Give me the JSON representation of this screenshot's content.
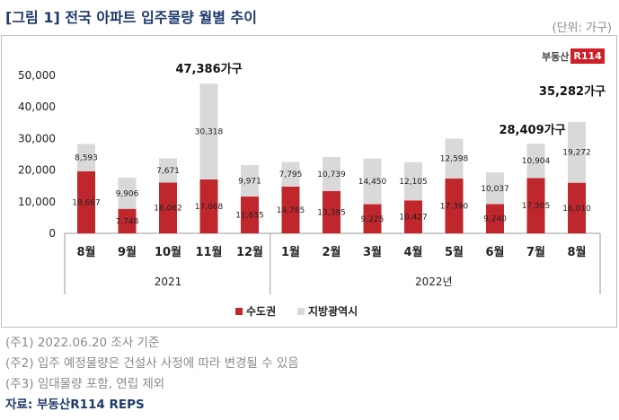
{
  "header": {
    "title": "[그림 1] 전국 아파트 입주물량 월별 추이",
    "unit": "(단위: 가구)"
  },
  "logo": {
    "text": "부동산",
    "badge": "R114"
  },
  "chart_data": {
    "type": "bar",
    "stacked": true,
    "categories": [
      "8월",
      "9월",
      "10월",
      "11월",
      "12월",
      "1월",
      "2월",
      "3월",
      "4월",
      "5월",
      "6월",
      "7월",
      "8월"
    ],
    "year_groups": [
      {
        "label": "2021",
        "count": 5
      },
      {
        "label": "2022년",
        "count": 8
      }
    ],
    "series": [
      {
        "name": "수도권",
        "color": "#c0272d",
        "values": [
          19667,
          7748,
          16062,
          17068,
          11635,
          14785,
          13395,
          9225,
          10427,
          17390,
          9240,
          17505,
          16010
        ]
      },
      {
        "name": "지방광역시",
        "color": "#d9d9d9",
        "values": [
          8593,
          9906,
          7671,
          30318,
          9971,
          7795,
          10739,
          14450,
          12105,
          12598,
          10037,
          10904,
          19272
        ]
      }
    ],
    "value_labels": {
      "series0": [
        "19,667",
        "7,748",
        "16,062",
        "17,068",
        "11,635",
        "14,785",
        "13,395",
        "9,225",
        "10,427",
        "17,390",
        "9,240",
        "17,505",
        "16,010"
      ],
      "series1": [
        "8,593",
        "9,906",
        "7,671",
        "30,318",
        "9,971",
        "7,795",
        "10,739",
        "14,450",
        "12,105",
        "12,598",
        "10,037",
        "10,904",
        "19,272"
      ]
    },
    "total_callouts": [
      {
        "index": 3,
        "label": "47,386가구"
      },
      {
        "index": 11,
        "label": "28,409가구"
      },
      {
        "index": 12,
        "label": "35,282가구"
      }
    ],
    "ylim": [
      0,
      50000
    ],
    "yticks": [
      0,
      10000,
      20000,
      30000,
      40000,
      50000
    ],
    "ytick_labels": [
      "0",
      "10,000",
      "20,000",
      "30,000",
      "40,000",
      "50,000"
    ],
    "legend_position": "bottom-center",
    "grid": false
  },
  "notes": [
    "(주1) 2022.06.20 조사 기준",
    "(주2) 입주 예정물량은 건설사 사정에 따라 변경될 수 있음",
    "(주3) 임대물량 포함, 연립 제외"
  ],
  "source": "자료: 부동산R114 REPS"
}
